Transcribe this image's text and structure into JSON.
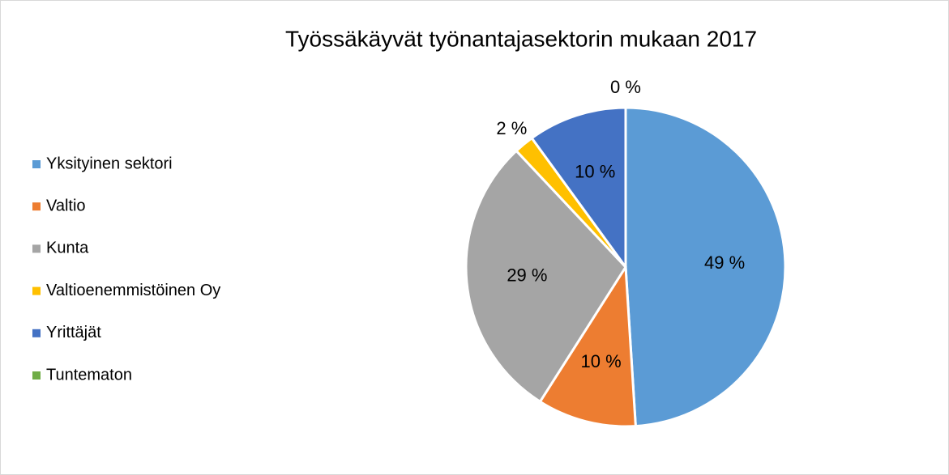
{
  "chart_data": {
    "type": "pie",
    "title": "Työssäkäyvät työnantajasektorin mukaan 2017",
    "categories": [
      "Yksityinen sektori",
      "Valtio",
      "Kunta",
      "Valtioenemmistöinen Oy",
      "Yrittäjät",
      "Tuntematon"
    ],
    "values": [
      49,
      10,
      29,
      2,
      10,
      0
    ],
    "value_labels": [
      "49 %",
      "10 %",
      "29 %",
      "2 %",
      "10 %",
      "0 %"
    ],
    "colors": [
      "#5b9bd5",
      "#ed7d31",
      "#a5a5a5",
      "#ffc000",
      "#4472c4",
      "#70ad47"
    ],
    "legend": "left"
  }
}
